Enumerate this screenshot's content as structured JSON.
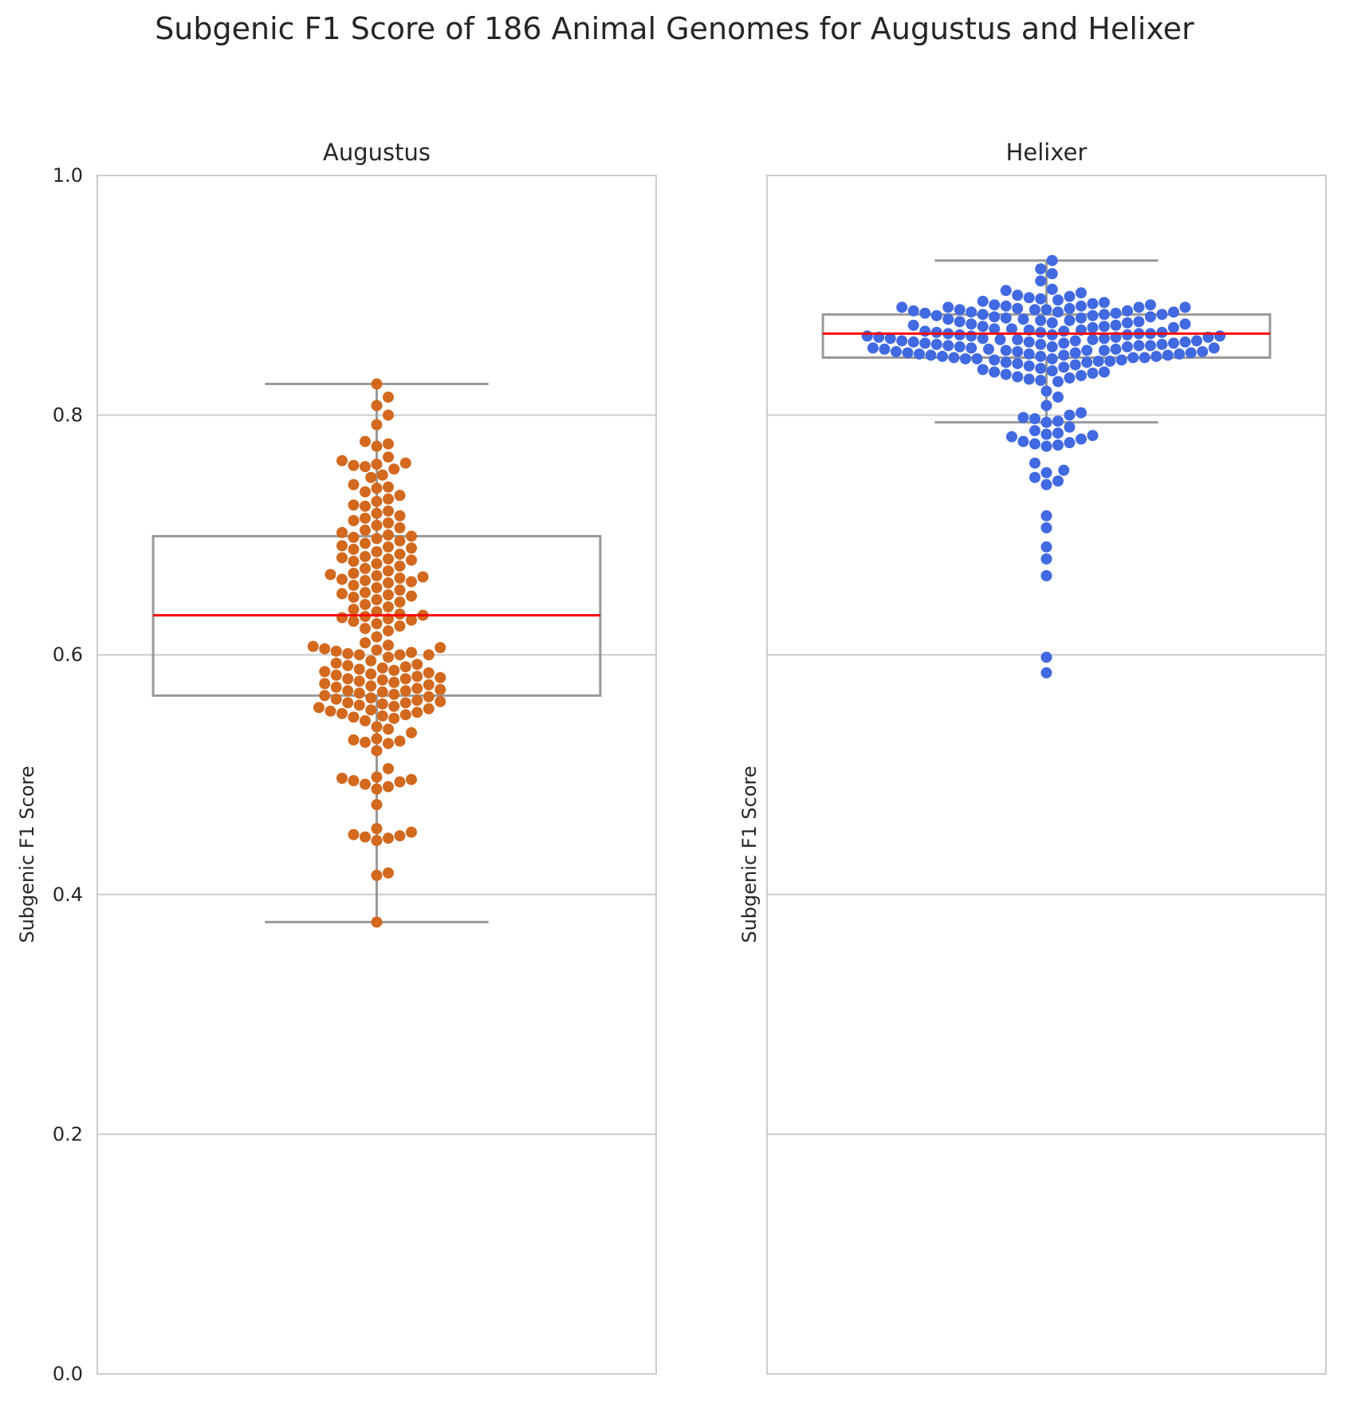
{
  "chart_data": {
    "type": "box",
    "title": "Subgenic F1 Score of 186 Animal Genomes for Augustus and Helixer",
    "ylabel": "Subgenic F1 Score",
    "ylim": [
      0,
      1.0
    ],
    "y_ticks": [
      0.0,
      0.2,
      0.4,
      0.6,
      0.8,
      1.0
    ],
    "y_tick_labels": [
      "0.0",
      "0.2",
      "0.4",
      "0.6",
      "0.8",
      "1.0"
    ],
    "grid": true,
    "colors": {
      "box_line": "#999999",
      "median": "#ff0000",
      "grid": "#cccccc",
      "frame": "#cccccc"
    },
    "panels": [
      {
        "name": "Augustus",
        "color": "#d2691e",
        "box": {
          "whisker_low": 0.377,
          "q1": 0.566,
          "median": 0.633,
          "q3": 0.699,
          "whisker_high": 0.826
        },
        "points": [
          0.826,
          0.815,
          0.808,
          0.8,
          0.792,
          0.778,
          0.776,
          0.774,
          0.765,
          0.762,
          0.76,
          0.759,
          0.758,
          0.757,
          0.755,
          0.75,
          0.748,
          0.742,
          0.74,
          0.739,
          0.736,
          0.733,
          0.73,
          0.728,
          0.725,
          0.724,
          0.72,
          0.718,
          0.716,
          0.714,
          0.712,
          0.71,
          0.708,
          0.706,
          0.704,
          0.702,
          0.7,
          0.699,
          0.698,
          0.697,
          0.695,
          0.693,
          0.691,
          0.69,
          0.689,
          0.688,
          0.686,
          0.684,
          0.682,
          0.681,
          0.68,
          0.679,
          0.678,
          0.676,
          0.674,
          0.672,
          0.67,
          0.668,
          0.667,
          0.666,
          0.665,
          0.664,
          0.663,
          0.662,
          0.661,
          0.66,
          0.658,
          0.656,
          0.654,
          0.652,
          0.651,
          0.65,
          0.649,
          0.648,
          0.646,
          0.644,
          0.642,
          0.64,
          0.638,
          0.636,
          0.634,
          0.633,
          0.632,
          0.631,
          0.63,
          0.629,
          0.628,
          0.626,
          0.624,
          0.622,
          0.62,
          0.615,
          0.61,
          0.608,
          0.607,
          0.606,
          0.605,
          0.604,
          0.603,
          0.602,
          0.601,
          0.6,
          0.598,
          0.595,
          0.593,
          0.592,
          0.591,
          0.59,
          0.589,
          0.588,
          0.587,
          0.586,
          0.585,
          0.584,
          0.583,
          0.582,
          0.581,
          0.58,
          0.579,
          0.578,
          0.577,
          0.576,
          0.575,
          0.574,
          0.573,
          0.572,
          0.571,
          0.57,
          0.569,
          0.568,
          0.567,
          0.566,
          0.565,
          0.564,
          0.563,
          0.562,
          0.561,
          0.56,
          0.559,
          0.558,
          0.557,
          0.556,
          0.555,
          0.554,
          0.553,
          0.552,
          0.551,
          0.55,
          0.549,
          0.548,
          0.547,
          0.545,
          0.54,
          0.538,
          0.535,
          0.53,
          0.529,
          0.528,
          0.527,
          0.526,
          0.52,
          0.505,
          0.498,
          0.497,
          0.496,
          0.495,
          0.494,
          0.492,
          0.49,
          0.488,
          0.475,
          0.455,
          0.452,
          0.45,
          0.449,
          0.448,
          0.447,
          0.445,
          0.418,
          0.416,
          0.377,
          0.6,
          0.6,
          0.58,
          0.57,
          0.56
        ]
      },
      {
        "name": "Helixer",
        "color": "#4169e1",
        "box": {
          "whisker_low": 0.794,
          "q1": 0.848,
          "median": 0.868,
          "q3": 0.884,
          "whisker_high": 0.929
        },
        "points": [
          0.929,
          0.922,
          0.918,
          0.912,
          0.905,
          0.904,
          0.902,
          0.9,
          0.899,
          0.898,
          0.897,
          0.896,
          0.895,
          0.894,
          0.893,
          0.892,
          0.891,
          0.891,
          0.89,
          0.89,
          0.89,
          0.889,
          0.889,
          0.888,
          0.888,
          0.887,
          0.887,
          0.886,
          0.886,
          0.885,
          0.885,
          0.884,
          0.884,
          0.883,
          0.883,
          0.882,
          0.882,
          0.881,
          0.881,
          0.88,
          0.88,
          0.879,
          0.879,
          0.878,
          0.878,
          0.877,
          0.877,
          0.876,
          0.876,
          0.875,
          0.875,
          0.874,
          0.874,
          0.873,
          0.873,
          0.872,
          0.872,
          0.871,
          0.871,
          0.87,
          0.87,
          0.869,
          0.869,
          0.869,
          0.868,
          0.868,
          0.868,
          0.867,
          0.867,
          0.867,
          0.866,
          0.866,
          0.866,
          0.865,
          0.865,
          0.865,
          0.864,
          0.864,
          0.864,
          0.863,
          0.863,
          0.863,
          0.862,
          0.862,
          0.862,
          0.861,
          0.861,
          0.861,
          0.86,
          0.86,
          0.86,
          0.859,
          0.859,
          0.859,
          0.858,
          0.858,
          0.858,
          0.857,
          0.857,
          0.857,
          0.856,
          0.856,
          0.856,
          0.855,
          0.855,
          0.855,
          0.854,
          0.854,
          0.854,
          0.853,
          0.853,
          0.853,
          0.852,
          0.852,
          0.852,
          0.851,
          0.851,
          0.851,
          0.85,
          0.85,
          0.85,
          0.849,
          0.849,
          0.849,
          0.848,
          0.848,
          0.848,
          0.847,
          0.847,
          0.847,
          0.846,
          0.846,
          0.845,
          0.845,
          0.844,
          0.844,
          0.843,
          0.842,
          0.841,
          0.84,
          0.839,
          0.838,
          0.837,
          0.836,
          0.836,
          0.835,
          0.834,
          0.833,
          0.832,
          0.831,
          0.83,
          0.829,
          0.828,
          0.82,
          0.815,
          0.808,
          0.802,
          0.8,
          0.798,
          0.797,
          0.795,
          0.794,
          0.79,
          0.787,
          0.785,
          0.784,
          0.783,
          0.782,
          0.78,
          0.778,
          0.777,
          0.776,
          0.775,
          0.774,
          0.76,
          0.754,
          0.752,
          0.748,
          0.745,
          0.742,
          0.716,
          0.706,
          0.69,
          0.68,
          0.666,
          0.598,
          0.585,
          0.892,
          0.89,
          0.888,
          0.886,
          0.884
        ]
      }
    ]
  }
}
